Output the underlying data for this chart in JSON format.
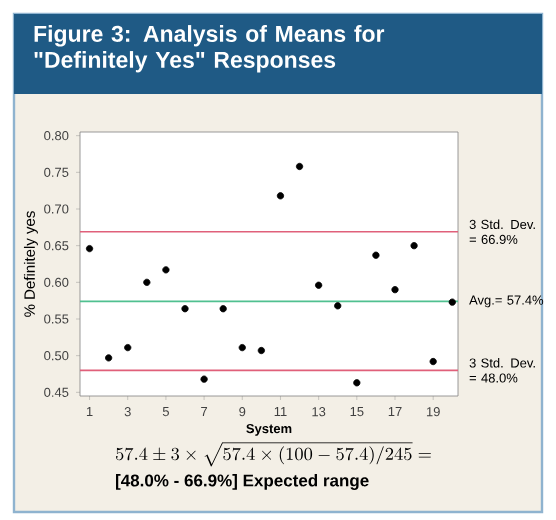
{
  "chart_data": {
    "type": "scatter",
    "title": "Figure 3: Analysis of Means for \"Definitely Yes\" Responses",
    "xlabel": "System",
    "ylabel": "% Definitely yes",
    "x": [
      1,
      2,
      3,
      4,
      5,
      6,
      7,
      8,
      9,
      10,
      11,
      12,
      13,
      14,
      15,
      16,
      17,
      18,
      19,
      20
    ],
    "series": [
      {
        "color": "#000000",
        "values": [
          0.646,
          0.497,
          0.511,
          0.6,
          0.617,
          0.564,
          0.468,
          0.564,
          0.511,
          0.507,
          0.718,
          0.758,
          0.596,
          0.568,
          0.463,
          0.637,
          0.59,
          0.65,
          0.492,
          0.573
        ]
      }
    ],
    "marker": "circle",
    "xlim": [
      0.5,
      20.3
    ],
    "ylim": [
      0.445,
      0.805
    ],
    "xticks": [
      1,
      3,
      5,
      7,
      9,
      11,
      13,
      15,
      17,
      19
    ],
    "yticks": [
      {
        "value": 0.45,
        "label": "0.45"
      },
      {
        "value": 0.5,
        "label": "0.50"
      },
      {
        "value": 0.55,
        "label": "0.55"
      },
      {
        "value": 0.6,
        "label": "0.60"
      },
      {
        "value": 0.65,
        "label": "0.65"
      },
      {
        "value": 0.7,
        "label": "0.70"
      },
      {
        "value": 0.75,
        "label": "0.75"
      },
      {
        "value": 0.8,
        "label": "0.80"
      }
    ],
    "ref_lines": [
      {
        "axis": "y",
        "value": 0.669,
        "label": "3 Std. Dev. = 66.9%",
        "color": "#e0607a"
      },
      {
        "axis": "y",
        "value": 0.574,
        "label": "Avg.= 57.4%",
        "color": "#50c090"
      },
      {
        "axis": "y",
        "value": 0.48,
        "label": "3 Std. Dev. = 48.0%",
        "color": "#e0607a"
      }
    ],
    "annotations": [
      "57.4 \\pm 3\\times\\sqrt{57.4\\times(100-57.4)/245} =",
      "[48.0% - 66.9%] Expected range"
    ]
  }
}
